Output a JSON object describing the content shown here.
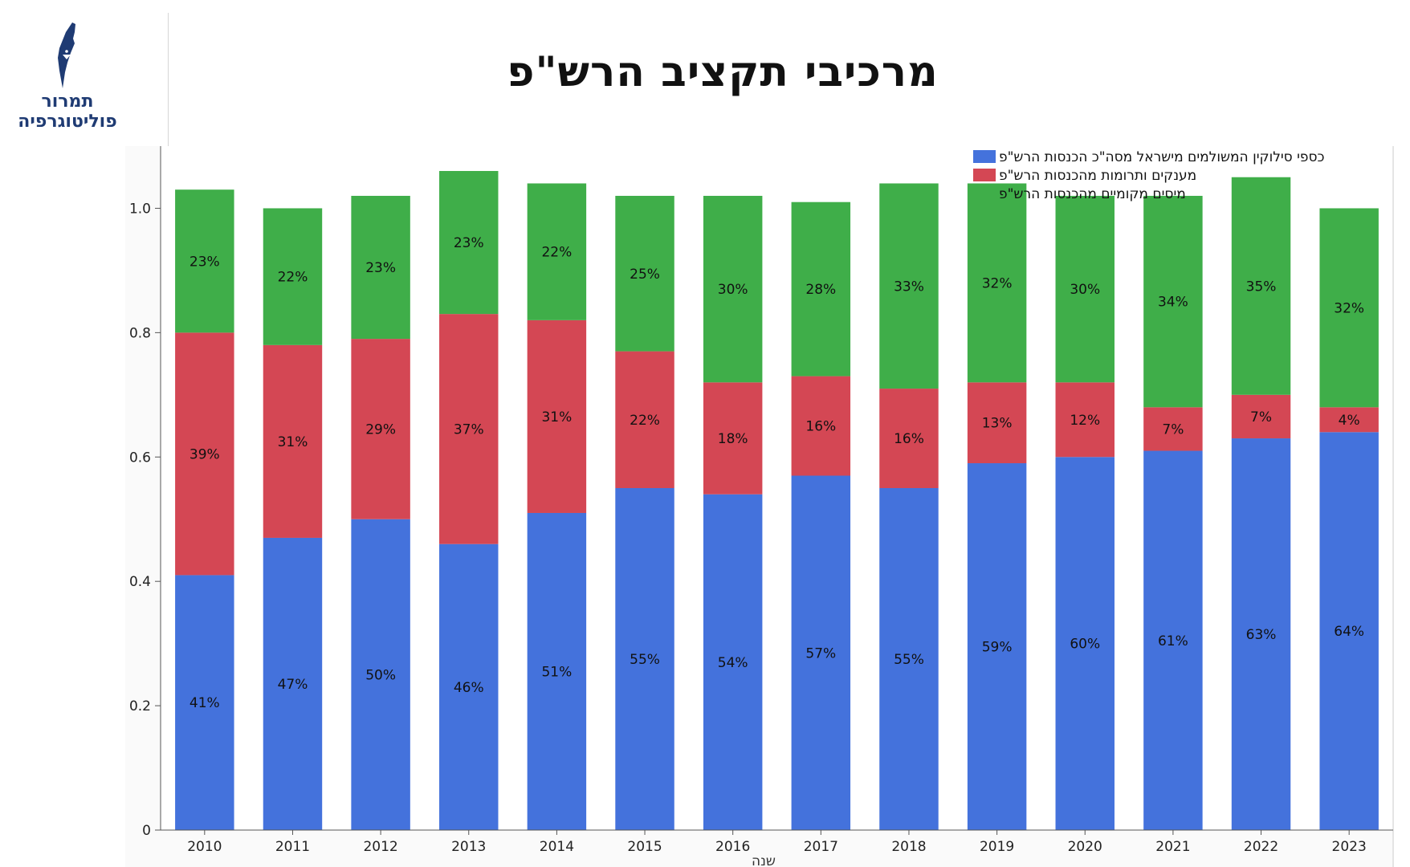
{
  "logo": {
    "line1": "תמרור",
    "line2": "פוליטוגרפיה"
  },
  "title": "מרכיבי תקציב הרש\"פ",
  "colors": {
    "blue": "#4472dc",
    "red": "#d44754",
    "green": "#3fae49",
    "brand": "#1f3b73"
  },
  "chart_data": {
    "type": "bar",
    "stacked": true,
    "xlabel": "שנה",
    "ylabel": "",
    "ylim": [
      0,
      1.1
    ],
    "yticks": [
      "0",
      "0.2",
      "0.4",
      "0.6",
      "0.8",
      "1.0"
    ],
    "grid": false,
    "legend_position": "top-right",
    "categories": [
      "2010",
      "2011",
      "2012",
      "2013",
      "2014",
      "2015",
      "2016",
      "2017",
      "2018",
      "2019",
      "2020",
      "2021",
      "2022",
      "2023"
    ],
    "series": [
      {
        "name": "כספי סילוקין המשולמים מישראל מסה\"כ הכנסות הרש\"פ",
        "color": "#4472dc",
        "values": [
          0.41,
          0.47,
          0.5,
          0.46,
          0.51,
          0.55,
          0.54,
          0.57,
          0.55,
          0.59,
          0.6,
          0.61,
          0.63,
          0.64
        ],
        "labels": [
          "41%",
          "47%",
          "50%",
          "46%",
          "51%",
          "55%",
          "54%",
          "57%",
          "55%",
          "59%",
          "60%",
          "61%",
          "63%",
          "64%"
        ]
      },
      {
        "name": "מענקים ותרומות מהכנסות הרש\"פ",
        "color": "#d44754",
        "values": [
          0.39,
          0.31,
          0.29,
          0.37,
          0.31,
          0.22,
          0.18,
          0.16,
          0.16,
          0.13,
          0.12,
          0.07,
          0.07,
          0.04
        ],
        "labels": [
          "39%",
          "31%",
          "29%",
          "37%",
          "31%",
          "22%",
          "18%",
          "16%",
          "16%",
          "13%",
          "12%",
          "7%",
          "7%",
          "4%"
        ]
      },
      {
        "name": "מיסים מקומיים מהכנסות הרש\"פ",
        "color": "#3fae49",
        "values": [
          0.23,
          0.22,
          0.23,
          0.23,
          0.22,
          0.25,
          0.3,
          0.28,
          0.33,
          0.32,
          0.3,
          0.34,
          0.35,
          0.32
        ],
        "labels": [
          "23%",
          "22%",
          "23%",
          "23%",
          "22%",
          "25%",
          "30%",
          "28%",
          "33%",
          "32%",
          "30%",
          "34%",
          "35%",
          "32%"
        ]
      }
    ]
  }
}
